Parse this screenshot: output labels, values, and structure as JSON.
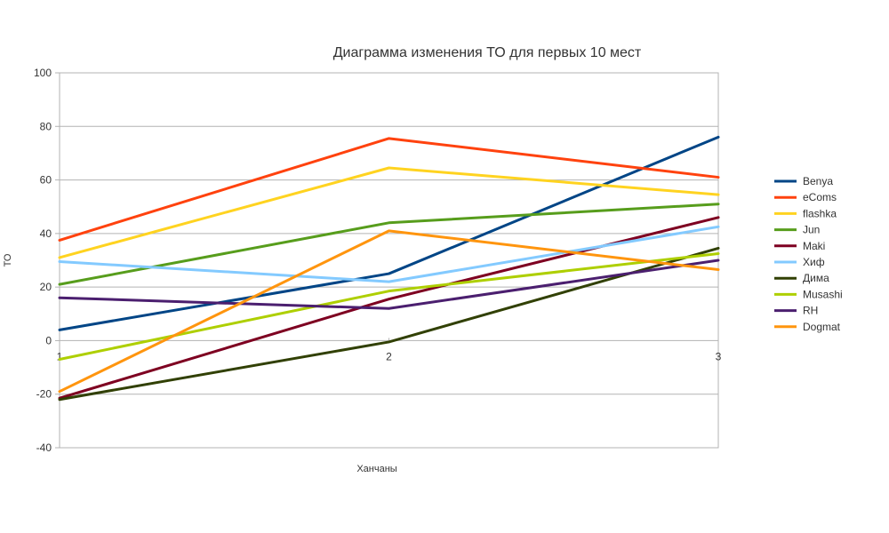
{
  "chart_data": {
    "type": "line",
    "title": "Диаграмма изменения ТО для первых 10 мест",
    "xlabel": "Ханчаны",
    "ylabel": "ТО",
    "x": [
      1,
      2,
      3
    ],
    "x_tick_labels": [
      "1",
      "2",
      "3"
    ],
    "ylim": [
      -40,
      100
    ],
    "y_ticks": [
      -40,
      -20,
      0,
      20,
      40,
      60,
      80,
      100
    ],
    "y_tick_labels": [
      "-40",
      "-20",
      "0",
      "20",
      "40",
      "60",
      "80",
      "100"
    ],
    "grid": "horizontal",
    "legend_position": "right",
    "series": [
      {
        "name": "Benya",
        "color": "#004586",
        "values": [
          4,
          25,
          76
        ]
      },
      {
        "name": "eComs",
        "color": "#ff420e",
        "values": [
          37.5,
          75.5,
          61
        ]
      },
      {
        "name": "flashka",
        "color": "#ffd320",
        "values": [
          31,
          64.5,
          54.5
        ]
      },
      {
        "name": "Jun",
        "color": "#579d1c",
        "values": [
          21,
          44,
          51
        ]
      },
      {
        "name": "Maki",
        "color": "#7e0021",
        "values": [
          -21.5,
          15.5,
          46
        ]
      },
      {
        "name": "Хиф",
        "color": "#83caff",
        "values": [
          29.5,
          22,
          42.5
        ]
      },
      {
        "name": "Дима",
        "color": "#314004",
        "values": [
          -22,
          -0.5,
          34.5
        ]
      },
      {
        "name": "Musashi",
        "color": "#aecf00",
        "values": [
          -7,
          18.5,
          32.5
        ]
      },
      {
        "name": "RH",
        "color": "#4b1f6f",
        "values": [
          16,
          12,
          30
        ]
      },
      {
        "name": "Dogmat",
        "color": "#ff950e",
        "values": [
          -19,
          41,
          26.5
        ]
      }
    ]
  }
}
